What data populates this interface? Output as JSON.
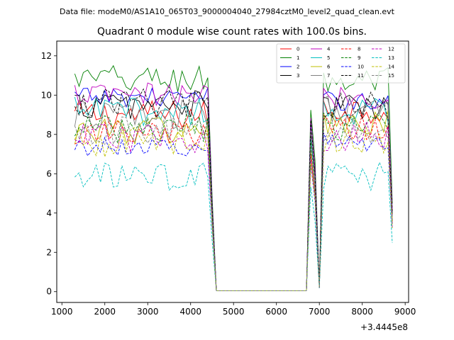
{
  "suptitle": "Data file: modeM0/AS1A10_065T03_9000004040_27984cztM0_level2_quad_clean.evt",
  "chart_data": {
    "type": "line",
    "title": "Quadrant 0 module wise count rates with 100.0s bins.",
    "xlabel": "",
    "ylabel": "",
    "x_offset_label": "+3.4445e8",
    "xlim": [
      880,
      9080
    ],
    "ylim": [
      -0.55,
      12.75
    ],
    "x_ticks": [
      1000,
      2000,
      3000,
      4000,
      5000,
      6000,
      7000,
      8000,
      9000
    ],
    "y_ticks": [
      0,
      2,
      4,
      6,
      8,
      10,
      12
    ],
    "grid": false,
    "legend_position": "top-right",
    "series": [
      {
        "name": "0",
        "color": "#ff0000",
        "dash": false,
        "base": 9.0,
        "amp": 0.3,
        "tail": 9.3
      },
      {
        "name": "1",
        "color": "#008000",
        "dash": false,
        "base": 10.8,
        "amp": 0.3,
        "tail": 10.7
      },
      {
        "name": "2",
        "color": "#0000ff",
        "dash": false,
        "base": 9.9,
        "amp": 0.2,
        "tail": 9.7
      },
      {
        "name": "3",
        "color": "#000000",
        "dash": false,
        "base": 9.5,
        "amp": 0.3,
        "tail": 9.4
      },
      {
        "name": "4",
        "color": "#bf00bf",
        "dash": false,
        "base": 10.0,
        "amp": 0.25,
        "tail": 9.9
      },
      {
        "name": "5",
        "color": "#00bfbf",
        "dash": false,
        "base": 9.2,
        "amp": 0.3,
        "tail": 9.1
      },
      {
        "name": "6",
        "color": "#bfbf00",
        "dash": false,
        "base": 8.2,
        "amp": 0.3,
        "tail": 8.5
      },
      {
        "name": "7",
        "color": "#808080",
        "dash": false,
        "base": 9.0,
        "amp": 0.3,
        "tail": 9.2
      },
      {
        "name": "8",
        "color": "#ff0000",
        "dash": true,
        "base": 8.0,
        "amp": 0.3,
        "tail": 8.3
      },
      {
        "name": "9",
        "color": "#008000",
        "dash": true,
        "base": 8.3,
        "amp": 0.3,
        "tail": 8.4
      },
      {
        "name": "10",
        "color": "#0000ff",
        "dash": true,
        "base": 7.4,
        "amp": 0.2,
        "tail": 7.6
      },
      {
        "name": "11",
        "color": "#000000",
        "dash": true,
        "base": 9.6,
        "amp": 0.3,
        "tail": 9.5
      },
      {
        "name": "12",
        "color": "#bf00bf",
        "dash": true,
        "base": 7.8,
        "amp": 0.3,
        "tail": 7.9
      },
      {
        "name": "13",
        "color": "#00bfbf",
        "dash": true,
        "base": 5.8,
        "amp": 0.3,
        "tail": 5.9
      },
      {
        "name": "14",
        "color": "#bfbf00",
        "dash": true,
        "base": 7.6,
        "amp": 0.3,
        "tail": 7.7
      },
      {
        "name": "15",
        "color": "#808080",
        "dash": true,
        "base": 8.2,
        "amp": 0.3,
        "tail": 8.2
      }
    ]
  }
}
